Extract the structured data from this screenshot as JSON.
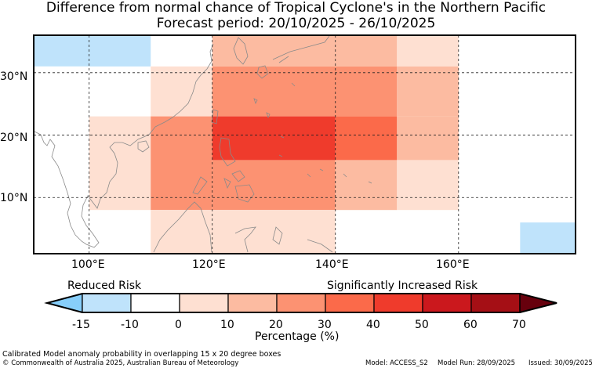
{
  "title_line1": "Difference from normal chance of Tropical Cyclone's in the Northern Pacific",
  "title_line2": "Forecast period: 20/10/2025 - 26/10/2025",
  "axes": {
    "lon_labels": [
      "100°E",
      "120°E",
      "140°E",
      "160°E"
    ],
    "lat_labels": [
      "30°N",
      "20°N",
      "10°N"
    ]
  },
  "map": {
    "lon_range": [
      91,
      179
    ],
    "lat_range": [
      1,
      36
    ],
    "cells": [
      {
        "lon0": 91,
        "lon1": 110,
        "lat0": 31,
        "lat1": 36,
        "value": -12
      },
      {
        "lon0": 91,
        "lon1": 100,
        "lat0": 23,
        "lat1": 31,
        "value": -8
      },
      {
        "lon0": 110,
        "lon1": 120,
        "lat0": 23,
        "lat1": 31,
        "value": 5
      },
      {
        "lon0": 120,
        "lon1": 150,
        "lat0": 31,
        "lat1": 36,
        "value": 15
      },
      {
        "lon0": 150,
        "lon1": 160,
        "lat0": 31,
        "lat1": 36,
        "value": 5
      },
      {
        "lon0": 120,
        "lon1": 150,
        "lat0": 23,
        "lat1": 31,
        "value": 25
      },
      {
        "lon0": 150,
        "lon1": 160,
        "lat0": 23,
        "lat1": 31,
        "value": 15
      },
      {
        "lon0": 170,
        "lon1": 179,
        "lat0": 23,
        "lat1": 36,
        "value": -8
      },
      {
        "lon0": 100,
        "lon1": 110,
        "lat0": 8,
        "lat1": 23,
        "value": 5
      },
      {
        "lon0": 110,
        "lon1": 120,
        "lat0": 8,
        "lat1": 23,
        "value": 25
      },
      {
        "lon0": 120,
        "lon1": 140,
        "lat0": 16,
        "lat1": 23,
        "value": 45
      },
      {
        "lon0": 140,
        "lon1": 150,
        "lat0": 16,
        "lat1": 23,
        "value": 35
      },
      {
        "lon0": 150,
        "lon1": 160,
        "lat0": 16,
        "lat1": 23,
        "value": 15
      },
      {
        "lon0": 120,
        "lon1": 140,
        "lat0": 8,
        "lat1": 16,
        "value": 25
      },
      {
        "lon0": 140,
        "lon1": 150,
        "lat0": 8,
        "lat1": 16,
        "value": 15
      },
      {
        "lon0": 150,
        "lon1": 160,
        "lat0": 8,
        "lat1": 16,
        "value": 5
      },
      {
        "lon0": 110,
        "lon1": 140,
        "lat0": 1,
        "lat1": 8,
        "value": 5
      },
      {
        "lon0": 170,
        "lon1": 179,
        "lat0": 8,
        "lat1": 13,
        "value": -8
      },
      {
        "lon0": 160,
        "lon1": 170,
        "lat0": 1,
        "lat1": 6,
        "value": -8
      },
      {
        "lon0": 170,
        "lon1": 179,
        "lat0": 1,
        "lat1": 6,
        "value": -12
      }
    ]
  },
  "legend": {
    "left_label": "Reduced Risk",
    "right_label": "Significantly Increased Risk",
    "axis_label": "Percentage (%)",
    "ticks": [
      "-15",
      "-10",
      "0",
      "10",
      "20",
      "30",
      "40",
      "50",
      "60",
      "70"
    ],
    "bins": [
      {
        "from": -15,
        "to": -10,
        "color": "#bfe3fb"
      },
      {
        "from": -10,
        "to": 0,
        "color": "#ffffff"
      },
      {
        "from": 0,
        "to": 10,
        "color": "#fee0d2"
      },
      {
        "from": 10,
        "to": 20,
        "color": "#fcbba1"
      },
      {
        "from": 20,
        "to": 30,
        "color": "#fc9272"
      },
      {
        "from": 30,
        "to": 40,
        "color": "#fb6a4a"
      },
      {
        "from": 40,
        "to": 50,
        "color": "#ef3b2c"
      },
      {
        "from": 50,
        "to": 60,
        "color": "#cb181d"
      },
      {
        "from": 60,
        "to": 70,
        "color": "#a50f15"
      }
    ],
    "under_color": "#87cefa",
    "over_color": "#67000d"
  },
  "footer": {
    "line1": "Calibrated Model anomaly probability in overlapping 15 x 20 degree boxes",
    "line2": "© Commonwealth of Australia 2025, Australian Bureau of Meteorology",
    "model": "Model: ACCESS_S2",
    "run": "Model Run: 28/09/2025",
    "issued": "Issued: 30/09/2025"
  }
}
